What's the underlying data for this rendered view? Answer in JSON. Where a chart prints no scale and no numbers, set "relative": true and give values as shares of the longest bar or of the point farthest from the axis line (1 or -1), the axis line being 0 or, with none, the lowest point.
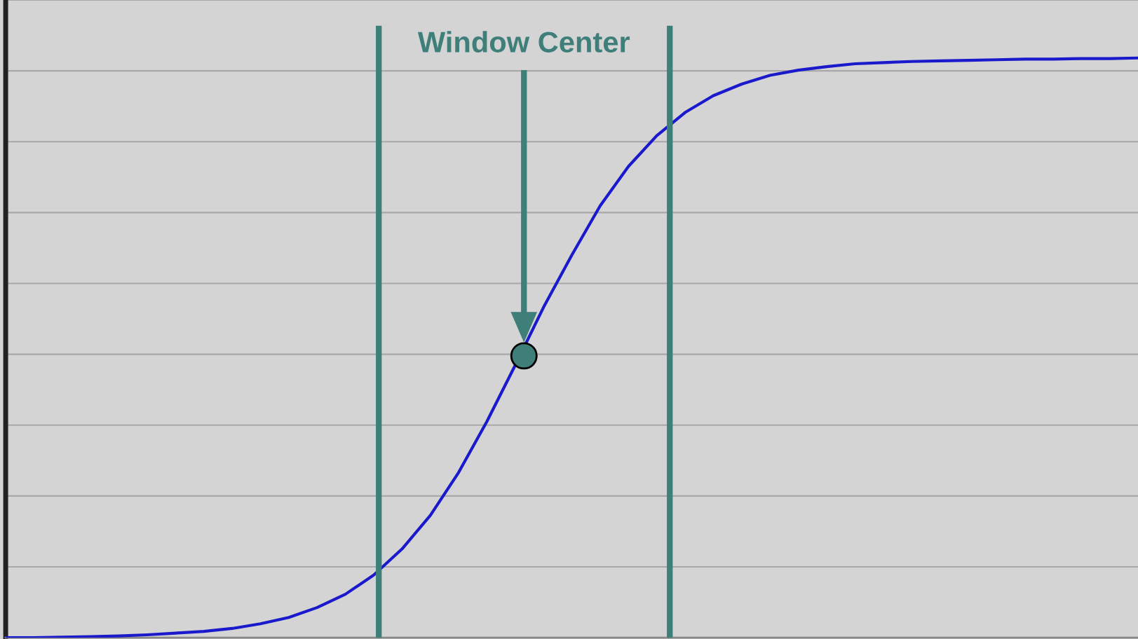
{
  "chart_data": {
    "type": "line",
    "relative": true,
    "categories": [
      null,
      null,
      null,
      null,
      null,
      null,
      null,
      null,
      null,
      null,
      null,
      null,
      null,
      null,
      null,
      null,
      null,
      null,
      null,
      null,
      null,
      null,
      null,
      null,
      null,
      null,
      null,
      null,
      null,
      null,
      null,
      null,
      null,
      null,
      null,
      null,
      null,
      null,
      null,
      null,
      null
    ],
    "series": [
      {
        "color": "#1a1acc",
        "values": [
          0.0,
          0.0,
          0.001,
          0.002,
          0.003,
          0.005,
          0.008,
          0.011,
          0.016,
          0.024,
          0.035,
          0.052,
          0.075,
          0.108,
          0.153,
          0.211,
          0.285,
          0.373,
          0.47,
          0.57,
          0.66,
          0.745,
          0.813,
          0.866,
          0.906,
          0.935,
          0.955,
          0.97,
          0.979,
          0.985,
          0.99,
          0.992,
          0.994,
          0.995,
          0.996,
          0.997,
          0.998,
          0.998,
          0.999,
          0.999,
          1.0
        ]
      }
    ],
    "annotations": [
      "Window Center"
    ],
    "grid": "y",
    "legend": false,
    "marker": "none",
    "line_style": "solid"
  }
}
